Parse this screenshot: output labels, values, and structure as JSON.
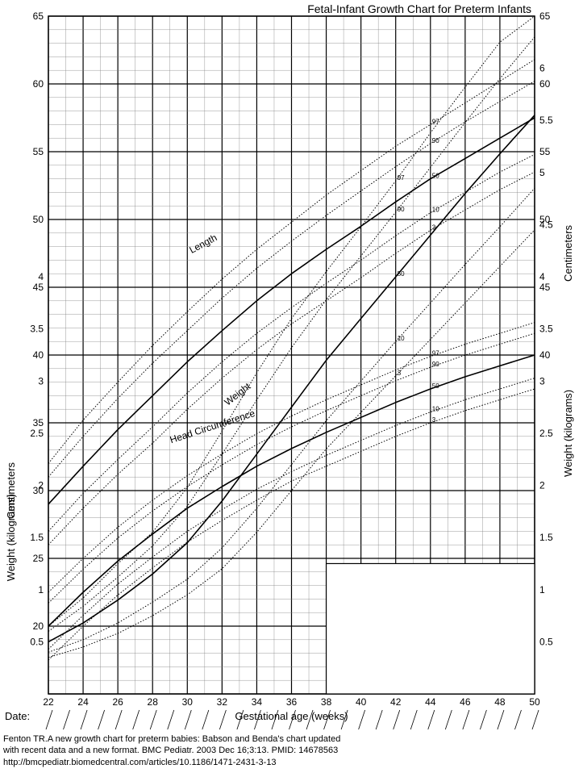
{
  "title": "Fetal-Infant Growth Chart for Preterm Infants",
  "x_axis": {
    "label": "Gestational age (weeks)",
    "min": 22,
    "max": 50,
    "major_step": 2,
    "minor_step": 1,
    "ticks": [
      22,
      24,
      26,
      28,
      30,
      32,
      34,
      36,
      38,
      40,
      42,
      44,
      46,
      48,
      50
    ]
  },
  "cm_axis": {
    "label_left": "Centimeters",
    "label_right": "Centimeters",
    "min": 15,
    "max": 65,
    "major_step": 5,
    "minor_step": 1,
    "ticks_left": [
      20,
      25,
      30,
      35,
      40,
      45,
      50,
      55,
      60,
      65
    ],
    "ticks_right": [
      40,
      45,
      50,
      55,
      60,
      65
    ]
  },
  "kg_axis": {
    "label_left": "Weight (kilograms)",
    "label_right": "Weight (kilograms)",
    "min": 0,
    "max": 6.5,
    "major_step": 0.5,
    "minor_step": 0.1,
    "ticks_left": [
      0.5,
      1,
      1.5,
      2,
      2.5,
      3,
      3.5,
      4
    ],
    "ticks_right": [
      0.5,
      1,
      1.5,
      2,
      2.5,
      3,
      3.5,
      4,
      4.5,
      5,
      5.5,
      6
    ]
  },
  "date_label": "Date:",
  "citation": [
    "Fenton TR.A new growth chart for preterm babies: Babson and Benda's chart updated",
    "with recent  data and a new format. BMC Pediatr. 2003 Dec 16;3:13. PMID: 14678563",
    "http://bmcpediatr.biomedcentral.com/articles/10.1186/1471-2431-3-13"
  ],
  "colors": {
    "background": "#ffffff",
    "grid_minor": "#808080",
    "grid_major": "#000000",
    "border": "#000000",
    "curve_dotted": "#000000",
    "curve_solid": "#000000",
    "text": "#000000"
  },
  "linewidths": {
    "minor_grid": 0.4,
    "major_grid": 1.2,
    "solid_curve": 1.6,
    "dotted_curve": 1.0
  },
  "percentile_labels": [
    "3",
    "10",
    "50",
    "90",
    "97"
  ],
  "series": {
    "length": {
      "label": "Length",
      "unit": "cm",
      "curves": {
        "3": [
          [
            22,
            26.0
          ],
          [
            24,
            28.7
          ],
          [
            26,
            31.2
          ],
          [
            28,
            33.5
          ],
          [
            30,
            36.0
          ],
          [
            32,
            38.3
          ],
          [
            34,
            40.4
          ],
          [
            36,
            42.3
          ],
          [
            38,
            44.0
          ],
          [
            40,
            45.7
          ],
          [
            42,
            47.5
          ],
          [
            44,
            49.2
          ],
          [
            46,
            50.7
          ],
          [
            48,
            52.2
          ],
          [
            50,
            53.5
          ]
        ],
        "10": [
          [
            22,
            27.0
          ],
          [
            24,
            29.8
          ],
          [
            26,
            32.3
          ],
          [
            28,
            34.7
          ],
          [
            30,
            37.2
          ],
          [
            32,
            39.5
          ],
          [
            34,
            41.6
          ],
          [
            36,
            43.5
          ],
          [
            38,
            45.3
          ],
          [
            40,
            47.0
          ],
          [
            42,
            48.8
          ],
          [
            44,
            50.5
          ],
          [
            46,
            52.0
          ],
          [
            48,
            53.5
          ],
          [
            50,
            54.8
          ]
        ],
        "50": [
          [
            22,
            29.0
          ],
          [
            24,
            31.8
          ],
          [
            26,
            34.5
          ],
          [
            28,
            37.0
          ],
          [
            30,
            39.5
          ],
          [
            32,
            41.8
          ],
          [
            34,
            44.0
          ],
          [
            36,
            46.0
          ],
          [
            38,
            47.8
          ],
          [
            40,
            49.5
          ],
          [
            42,
            51.3
          ],
          [
            44,
            53.0
          ],
          [
            46,
            54.5
          ],
          [
            48,
            56.0
          ],
          [
            50,
            57.5
          ]
        ],
        "90": [
          [
            22,
            31.0
          ],
          [
            24,
            34.0
          ],
          [
            26,
            36.8
          ],
          [
            28,
            39.4
          ],
          [
            30,
            41.8
          ],
          [
            32,
            44.2
          ],
          [
            34,
            46.4
          ],
          [
            36,
            48.4
          ],
          [
            38,
            50.3
          ],
          [
            40,
            52.1
          ],
          [
            42,
            53.9
          ],
          [
            44,
            55.6
          ],
          [
            46,
            57.2
          ],
          [
            48,
            58.7
          ],
          [
            50,
            60.2
          ]
        ],
        "97": [
          [
            22,
            32.0
          ],
          [
            24,
            35.2
          ],
          [
            26,
            38.0
          ],
          [
            28,
            40.7
          ],
          [
            30,
            43.2
          ],
          [
            32,
            45.6
          ],
          [
            34,
            47.8
          ],
          [
            36,
            49.8
          ],
          [
            38,
            51.8
          ],
          [
            40,
            53.6
          ],
          [
            42,
            55.4
          ],
          [
            44,
            57.0
          ],
          [
            46,
            58.6
          ],
          [
            48,
            60.2
          ],
          [
            50,
            61.8
          ]
        ]
      }
    },
    "head": {
      "label": "Head Circumference",
      "unit": "cm",
      "curves": {
        "3": [
          [
            22,
            17.5
          ],
          [
            24,
            20.0
          ],
          [
            26,
            22.3
          ],
          [
            28,
            24.3
          ],
          [
            30,
            26.2
          ],
          [
            32,
            27.8
          ],
          [
            34,
            29.3
          ],
          [
            36,
            30.7
          ],
          [
            38,
            31.8
          ],
          [
            40,
            32.9
          ],
          [
            42,
            34.0
          ],
          [
            44,
            35.0
          ],
          [
            46,
            35.9
          ],
          [
            48,
            36.7
          ],
          [
            50,
            37.5
          ]
        ],
        "10": [
          [
            22,
            18.3
          ],
          [
            24,
            20.8
          ],
          [
            26,
            23.1
          ],
          [
            28,
            25.1
          ],
          [
            30,
            27.0
          ],
          [
            32,
            28.6
          ],
          [
            34,
            30.1
          ],
          [
            36,
            31.4
          ],
          [
            38,
            32.6
          ],
          [
            40,
            33.7
          ],
          [
            42,
            34.8
          ],
          [
            44,
            35.8
          ],
          [
            46,
            36.7
          ],
          [
            48,
            37.5
          ],
          [
            50,
            38.3
          ]
        ],
        "50": [
          [
            22,
            20.0
          ],
          [
            24,
            22.5
          ],
          [
            26,
            24.8
          ],
          [
            28,
            26.8
          ],
          [
            30,
            28.7
          ],
          [
            32,
            30.3
          ],
          [
            34,
            31.8
          ],
          [
            36,
            33.1
          ],
          [
            38,
            34.3
          ],
          [
            40,
            35.4
          ],
          [
            42,
            36.5
          ],
          [
            44,
            37.5
          ],
          [
            46,
            38.4
          ],
          [
            48,
            39.2
          ],
          [
            50,
            40.0
          ]
        ],
        "90": [
          [
            22,
            21.7
          ],
          [
            24,
            24.2
          ],
          [
            26,
            26.5
          ],
          [
            28,
            28.5
          ],
          [
            30,
            30.3
          ],
          [
            32,
            31.9
          ],
          [
            34,
            33.4
          ],
          [
            36,
            34.7
          ],
          [
            38,
            35.9
          ],
          [
            40,
            37.0
          ],
          [
            42,
            38.1
          ],
          [
            44,
            39.1
          ],
          [
            46,
            40.0
          ],
          [
            48,
            40.8
          ],
          [
            50,
            41.6
          ]
        ],
        "97": [
          [
            22,
            22.5
          ],
          [
            24,
            25.0
          ],
          [
            26,
            27.3
          ],
          [
            28,
            29.3
          ],
          [
            30,
            31.1
          ],
          [
            32,
            32.7
          ],
          [
            34,
            34.2
          ],
          [
            36,
            35.5
          ],
          [
            38,
            36.7
          ],
          [
            40,
            37.8
          ],
          [
            42,
            38.9
          ],
          [
            44,
            39.9
          ],
          [
            46,
            40.8
          ],
          [
            48,
            41.6
          ],
          [
            50,
            42.4
          ]
        ]
      }
    },
    "weight": {
      "label": "Weight",
      "unit": "kg",
      "curves": {
        "3": [
          [
            22,
            0.35
          ],
          [
            24,
            0.45
          ],
          [
            26,
            0.58
          ],
          [
            28,
            0.75
          ],
          [
            30,
            0.95
          ],
          [
            32,
            1.2
          ],
          [
            34,
            1.55
          ],
          [
            36,
            1.95
          ],
          [
            38,
            2.35
          ],
          [
            40,
            2.7
          ],
          [
            42,
            3.05
          ],
          [
            44,
            3.4
          ],
          [
            46,
            3.75
          ],
          [
            48,
            4.1
          ],
          [
            50,
            4.45
          ]
        ],
        "10": [
          [
            22,
            0.4
          ],
          [
            24,
            0.52
          ],
          [
            26,
            0.68
          ],
          [
            28,
            0.88
          ],
          [
            30,
            1.1
          ],
          [
            32,
            1.4
          ],
          [
            34,
            1.78
          ],
          [
            36,
            2.2
          ],
          [
            38,
            2.62
          ],
          [
            40,
            3.0
          ],
          [
            42,
            3.38
          ],
          [
            44,
            3.75
          ],
          [
            46,
            4.12
          ],
          [
            48,
            4.48
          ],
          [
            50,
            4.85
          ]
        ],
        "50": [
          [
            22,
            0.5
          ],
          [
            24,
            0.68
          ],
          [
            26,
            0.9
          ],
          [
            28,
            1.15
          ],
          [
            30,
            1.45
          ],
          [
            32,
            1.85
          ],
          [
            34,
            2.3
          ],
          [
            36,
            2.75
          ],
          [
            38,
            3.2
          ],
          [
            40,
            3.6
          ],
          [
            42,
            4.0
          ],
          [
            44,
            4.4
          ],
          [
            46,
            4.8
          ],
          [
            48,
            5.18
          ],
          [
            50,
            5.55
          ]
        ],
        "90": [
          [
            22,
            0.6
          ],
          [
            24,
            0.84
          ],
          [
            26,
            1.12
          ],
          [
            28,
            1.42
          ],
          [
            30,
            1.8
          ],
          [
            32,
            2.3
          ],
          [
            34,
            2.82
          ],
          [
            36,
            3.32
          ],
          [
            38,
            3.78
          ],
          [
            40,
            4.2
          ],
          [
            42,
            4.62
          ],
          [
            44,
            5.05
          ],
          [
            46,
            5.48
          ],
          [
            48,
            5.9
          ],
          [
            50,
            6.3
          ]
        ],
        "97": [
          [
            22,
            0.65
          ],
          [
            24,
            0.92
          ],
          [
            26,
            1.25
          ],
          [
            28,
            1.55
          ],
          [
            30,
            1.98
          ],
          [
            32,
            2.52
          ],
          [
            34,
            3.08
          ],
          [
            36,
            3.6
          ],
          [
            38,
            4.05
          ],
          [
            40,
            4.48
          ],
          [
            42,
            4.92
          ],
          [
            44,
            5.38
          ],
          [
            46,
            5.82
          ],
          [
            48,
            6.25
          ],
          [
            50,
            6.5
          ]
        ]
      }
    }
  },
  "label_positions": {
    "length": {
      "x": 31,
      "y_cm": 48,
      "angle": -28
    },
    "head": {
      "x": 31.5,
      "y_cm": 34.5,
      "angle": -18
    },
    "weight": {
      "x": 33,
      "y_kg": 2.85,
      "angle": -38
    }
  },
  "blank_box": {
    "x_from": 38,
    "x_to": 50,
    "kg_from": 0,
    "kg_to": 1.25
  }
}
